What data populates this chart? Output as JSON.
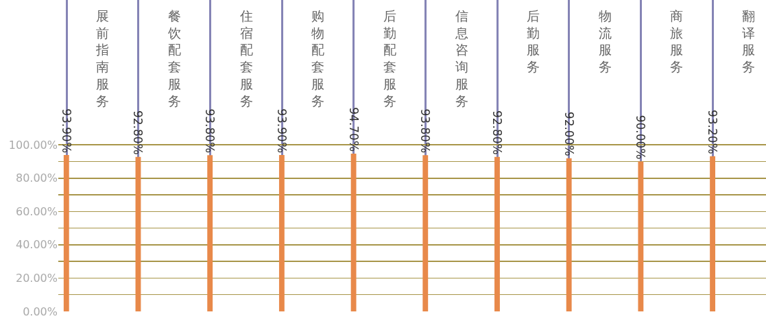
{
  "chart_data": {
    "type": "bar",
    "categories": [
      "展前指南服务",
      "餐饮配套服务",
      "住宿配套服务",
      "购物配套服务",
      "后勤配套服务",
      "信息咨询服务",
      "后勤服务",
      "物流服务",
      "商旅服务",
      "翻译服务"
    ],
    "values": [
      93.9,
      92.8,
      93.8,
      93.9,
      94.7,
      93.8,
      92.8,
      92.0,
      90.0,
      93.2
    ],
    "value_labels": [
      "93.90%",
      "92.80%",
      "93.80%",
      "93.90%",
      "94.70%",
      "93.80%",
      "92.80%",
      "92.00%",
      "90.00%",
      "93.20%"
    ],
    "color": "#e8894a",
    "ylim": [
      0,
      187
    ],
    "yticks": [
      {
        "value": 0,
        "label": "0.00%"
      },
      {
        "value": 10,
        "label": null
      },
      {
        "value": 20,
        "label": "20.00%"
      },
      {
        "value": 30,
        "label": null
      },
      {
        "value": 40,
        "label": "40.00%"
      },
      {
        "value": 50,
        "label": null
      },
      {
        "value": 60,
        "label": "60.00%"
      },
      {
        "value": 70,
        "label": null
      },
      {
        "value": 80,
        "label": "80.00%"
      },
      {
        "value": 90,
        "label": null
      },
      {
        "value": 100,
        "label": "100.00%"
      }
    ],
    "grid": true,
    "legend": false
  }
}
